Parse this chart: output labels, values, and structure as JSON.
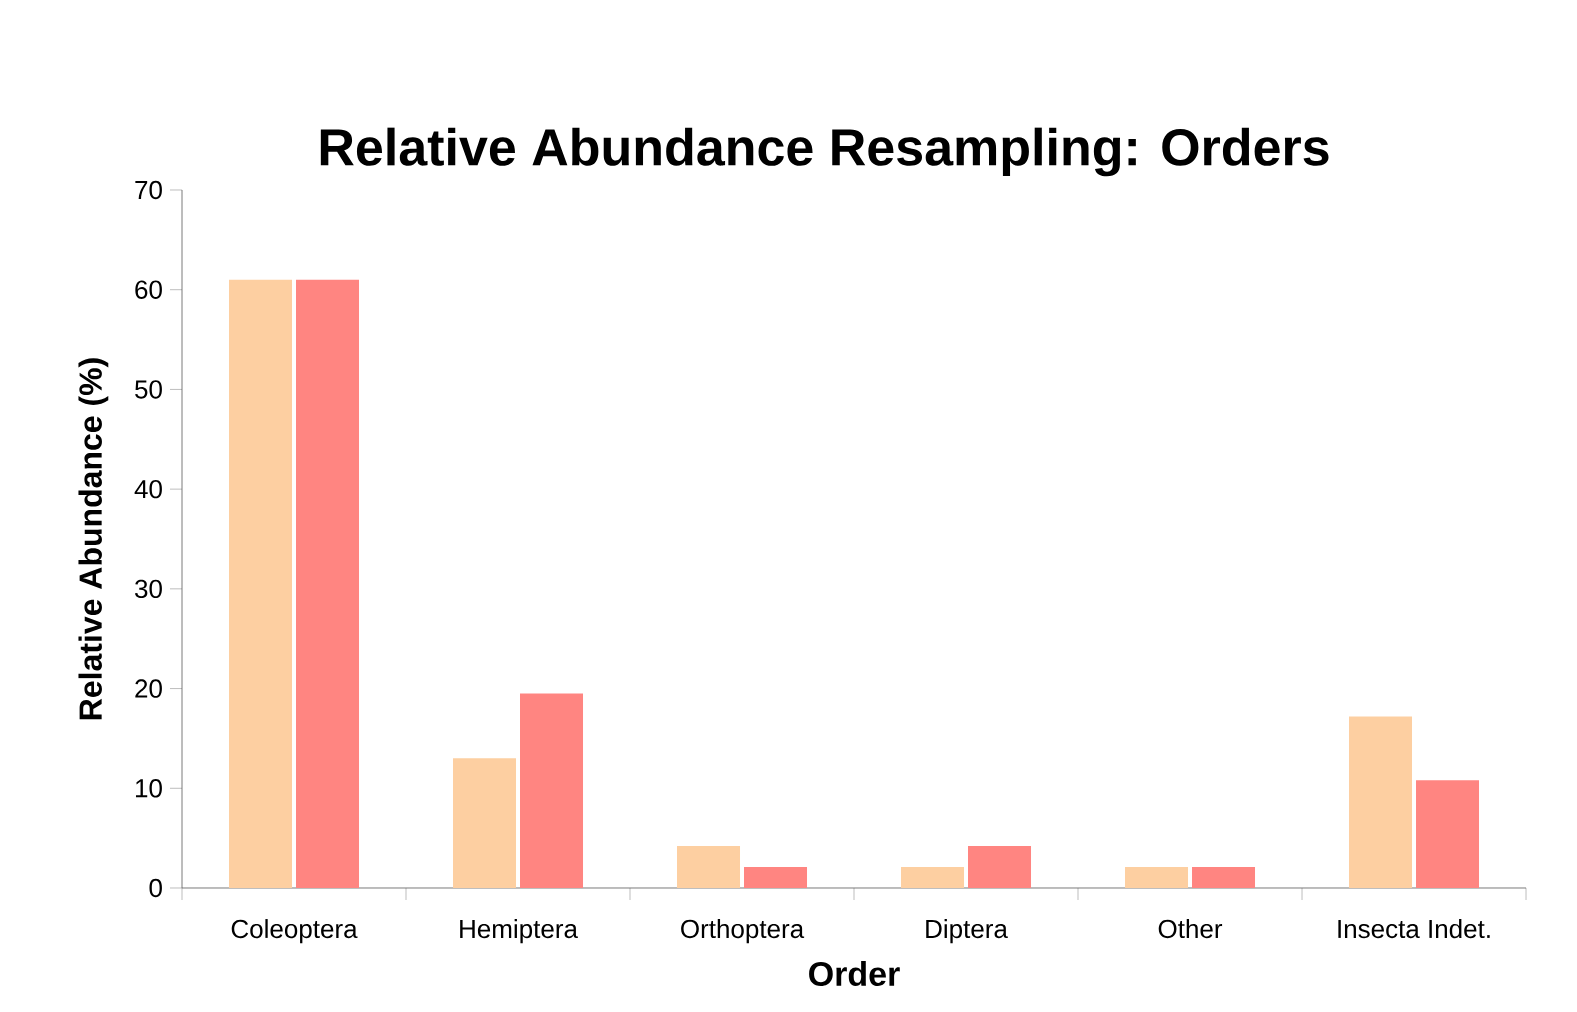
{
  "chart_data": {
    "type": "bar",
    "title": "Relative Abundance Resampling: Orders",
    "xlabel": "Order",
    "ylabel": "Relative Abundance (%)",
    "categories": [
      "Coleoptera",
      "Hemiptera",
      "Orthoptera",
      "Diptera",
      "Other",
      "Insecta Indet."
    ],
    "series": [
      {
        "color": "#fdcfa1",
        "values": [
          61,
          13,
          4.2,
          2.1,
          2.1,
          17.2
        ]
      },
      {
        "color": "#ff8581",
        "values": [
          61,
          19.5,
          2.1,
          4.2,
          2.1,
          10.8
        ]
      }
    ],
    "ylim": [
      0,
      70
    ],
    "yticks": [
      0,
      10,
      20,
      30,
      40,
      50,
      60,
      70
    ],
    "grid": false
  }
}
